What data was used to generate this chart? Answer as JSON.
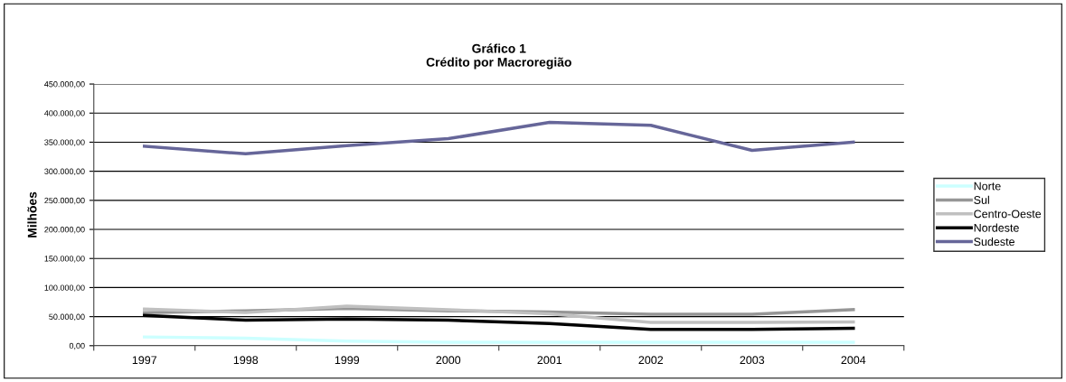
{
  "chart_data": {
    "type": "line",
    "title": "Gráfico 1\nCrédito por Macroregião",
    "ylabel": "Milhões",
    "categories": [
      "1997",
      "1998",
      "1999",
      "2000",
      "2001",
      "2002",
      "2003",
      "2004"
    ],
    "series": [
      {
        "name": "Norte",
        "color": "#ccffff",
        "values": [
          15000,
          13000,
          8000,
          6000,
          6000,
          6000,
          6000,
          6000
        ]
      },
      {
        "name": "Sul",
        "color": "#969696",
        "values": [
          57000,
          60000,
          64000,
          60000,
          58000,
          54000,
          54000,
          62000
        ]
      },
      {
        "name": "Centro-Oeste",
        "color": "#c0c0c0",
        "values": [
          63000,
          57000,
          68000,
          62000,
          55000,
          40000,
          40000,
          41000
        ]
      },
      {
        "name": "Nordeste",
        "color": "#000000",
        "values": [
          52000,
          44000,
          46000,
          44000,
          38000,
          28000,
          28000,
          30000
        ]
      },
      {
        "name": "Sudeste",
        "color": "#666699",
        "values": [
          343000,
          330000,
          344000,
          356000,
          384000,
          379000,
          336000,
          350000
        ]
      }
    ],
    "ylim": [
      0,
      450000
    ],
    "yticks": [
      {
        "value": 0,
        "label": "0,00"
      },
      {
        "value": 50000,
        "label": "50.000,00"
      },
      {
        "value": 100000,
        "label": "100.000,00"
      },
      {
        "value": 150000,
        "label": "150.000,00"
      },
      {
        "value": 200000,
        "label": "200.000,00"
      },
      {
        "value": 250000,
        "label": "250.000,00"
      },
      {
        "value": 300000,
        "label": "300.000,00"
      },
      {
        "value": 350000,
        "label": "350.000,00"
      },
      {
        "value": 400000,
        "label": "400.000,00"
      },
      {
        "value": 450000,
        "label": "450.000,00"
      }
    ],
    "grid": "y",
    "legend": "right",
    "marker": "none",
    "line_style": "solid"
  }
}
